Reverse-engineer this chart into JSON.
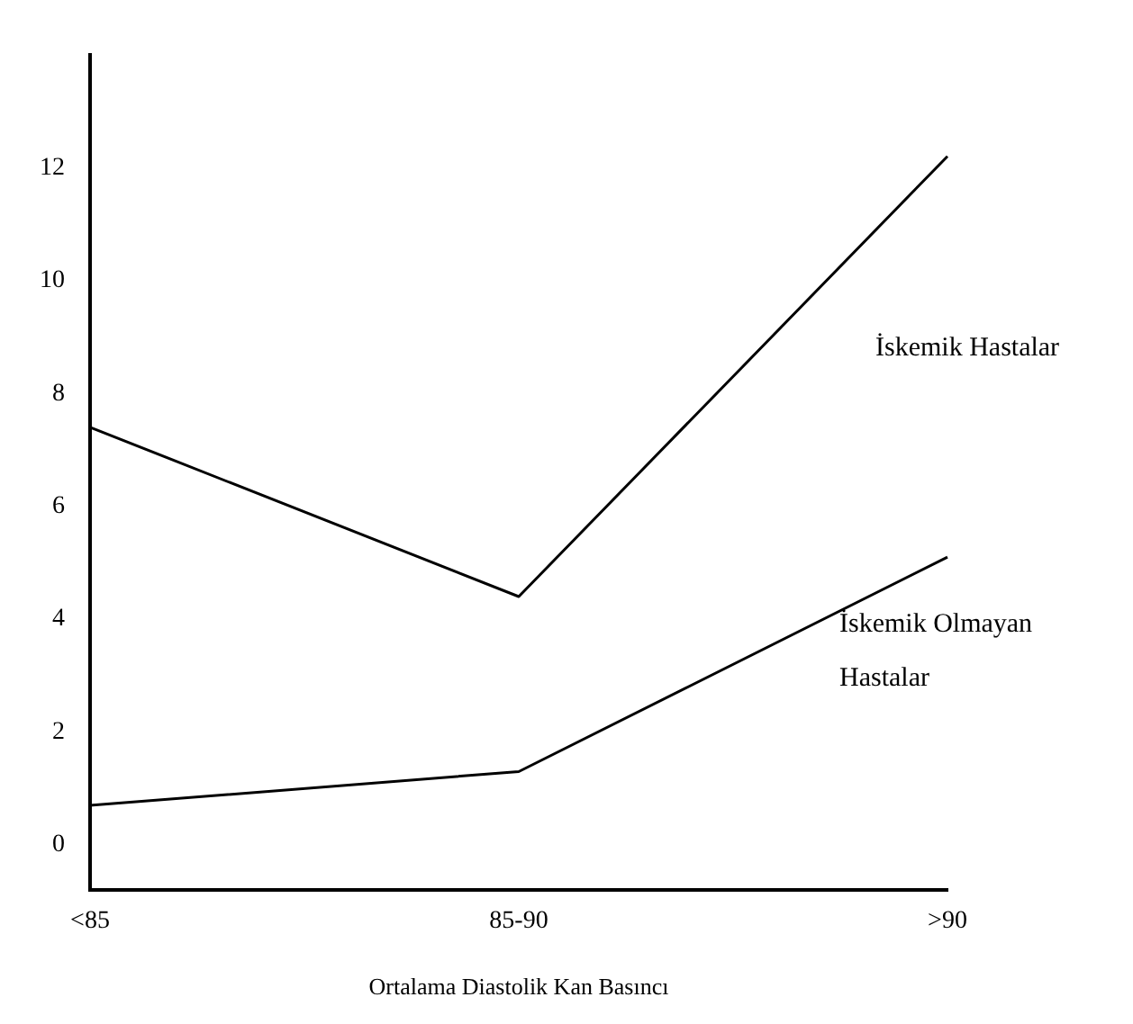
{
  "chart_data": {
    "type": "line",
    "xlabel": "Ortalama Diastolik Kan Basıncı",
    "categories": [
      "<85",
      "85-90",
      ">90"
    ],
    "series": [
      {
        "name": "İskemik Hastalar",
        "color": "#000000",
        "values": [
          7.4,
          4.4,
          12.2
        ]
      },
      {
        "name": "İskemik Olmayan Hastalar",
        "color": "#000000",
        "values": [
          0.7,
          1.3,
          5.1
        ]
      }
    ],
    "ylim": [
      -0.8,
      14
    ],
    "yticks": [
      0,
      2,
      4,
      6,
      8,
      10,
      12
    ],
    "grid": false,
    "legend": false,
    "marker": "none",
    "line_style": "solid"
  }
}
